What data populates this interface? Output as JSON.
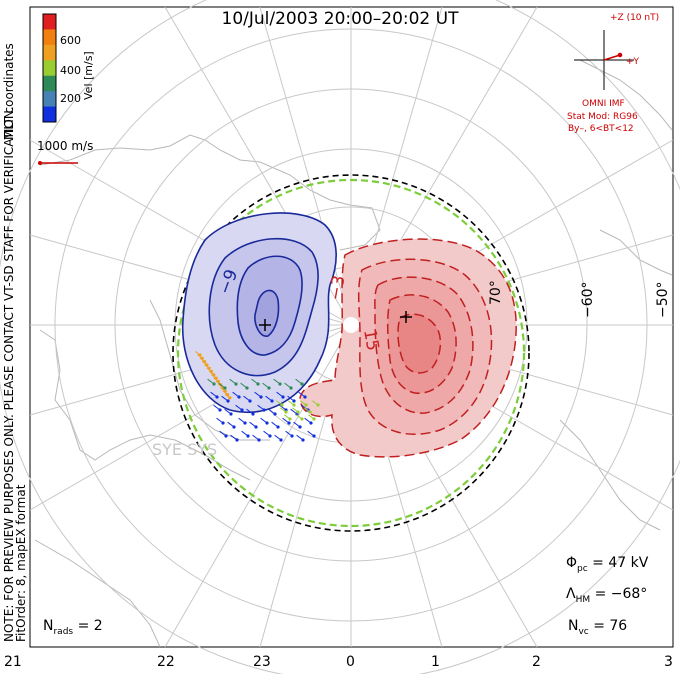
{
  "title": "10/Jul/2003 20:00–20:02 UT",
  "legend": {
    "label": "Vel [m/s]",
    "ticks": [
      "600",
      "400",
      "200"
    ],
    "colors": [
      "#e02020",
      "#f08010",
      "#f0a020",
      "#9acd32",
      "#2e8b57",
      "#4682b4",
      "#1030e0"
    ]
  },
  "side_labels": {
    "coords": "MLT coordinates",
    "note": "NOTE: FOR PREVIEW PURPOSES ONLY. PLEASE CONTACT VT-SD STAFF FOR VERIFICATION.",
    "fit": "FitOrder: 8, mapEX format"
  },
  "velocity_scale": "1000 m/s",
  "imf": {
    "z_label": "+Z (10 nT)",
    "y_label": "+Y",
    "source": "OMNI IMF",
    "model_line1": "Stat Mod: RG96",
    "model_line2": "By–, 6<BT<12"
  },
  "contour_labels": {
    "neg9": "−9",
    "neg3": "−3",
    "pos15": "15"
  },
  "lat_labels": {
    "l70": "70°",
    "l60": "−60°",
    "l50": "−50°"
  },
  "station_label": "SYE SYS",
  "stats": {
    "phi_sym": "Φ",
    "phi_sub": "pc",
    "phi_value": "= 47 kV",
    "lam_sym": "Λ",
    "lam_sub": "HM",
    "lam_value": "= −68°",
    "nvc_sym": "N",
    "nvc_sub": "vc",
    "nvc_value": "= 76",
    "nrads_sym": "N",
    "nrads_sub": "rads",
    "nrads_value": "= 2"
  },
  "mlt_ticks": [
    "21",
    "22",
    "23",
    "0",
    "1",
    "2",
    "3"
  ],
  "colors": {
    "negative": "#2233aa",
    "positive": "#cc2222",
    "boundary": "#7ccd3a",
    "grid": "#c8c8c8"
  }
}
